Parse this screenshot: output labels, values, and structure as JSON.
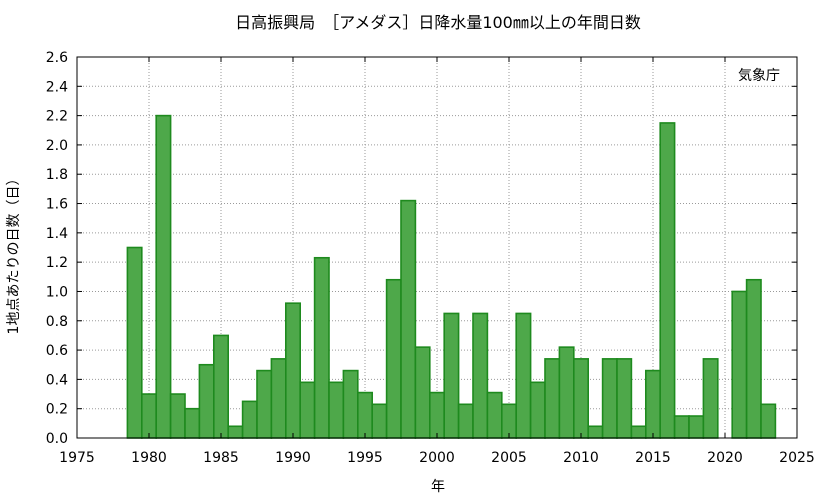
{
  "chart_data": {
    "type": "bar",
    "title": "日高振興局　［アメダス］日降水量100㎜以上の年間日数",
    "xlabel": "年",
    "ylabel": "1地点あたりの日数（日）",
    "annotation": "気象庁",
    "xlim": [
      1975,
      2025
    ],
    "ylim": [
      0.0,
      2.6
    ],
    "xticks": [
      1975,
      1980,
      1985,
      1990,
      1995,
      2000,
      2005,
      2010,
      2015,
      2020,
      2025
    ],
    "yticks": [
      "0.0",
      "0.2",
      "0.4",
      "0.6",
      "0.8",
      "1.0",
      "1.2",
      "1.4",
      "1.6",
      "1.8",
      "2.0",
      "2.2",
      "2.4",
      "2.6"
    ],
    "grid": true,
    "bar_color": "#4ea84a",
    "bar_edge_color": "#1e8a1e",
    "x": [
      1979,
      1980,
      1981,
      1982,
      1983,
      1984,
      1985,
      1986,
      1987,
      1988,
      1989,
      1990,
      1991,
      1992,
      1993,
      1994,
      1995,
      1996,
      1997,
      1998,
      1999,
      2000,
      2001,
      2002,
      2003,
      2004,
      2005,
      2006,
      2007,
      2008,
      2009,
      2010,
      2011,
      2012,
      2013,
      2014,
      2015,
      2016,
      2017,
      2018,
      2019,
      2020,
      2021,
      2022,
      2023
    ],
    "values": [
      1.3,
      0.3,
      2.2,
      0.3,
      0.2,
      0.5,
      0.7,
      0.08,
      0.25,
      0.46,
      0.54,
      0.92,
      0.38,
      1.23,
      0.38,
      0.46,
      0.31,
      0.23,
      1.08,
      1.62,
      0.62,
      0.31,
      0.85,
      0.23,
      0.85,
      0.31,
      0.23,
      0.85,
      0.38,
      0.54,
      0.62,
      0.54,
      0.08,
      0.54,
      0.54,
      0.08,
      0.46,
      2.15,
      0.15,
      0.15,
      0.54,
      0.0,
      1.0,
      1.08,
      0.23
    ]
  }
}
